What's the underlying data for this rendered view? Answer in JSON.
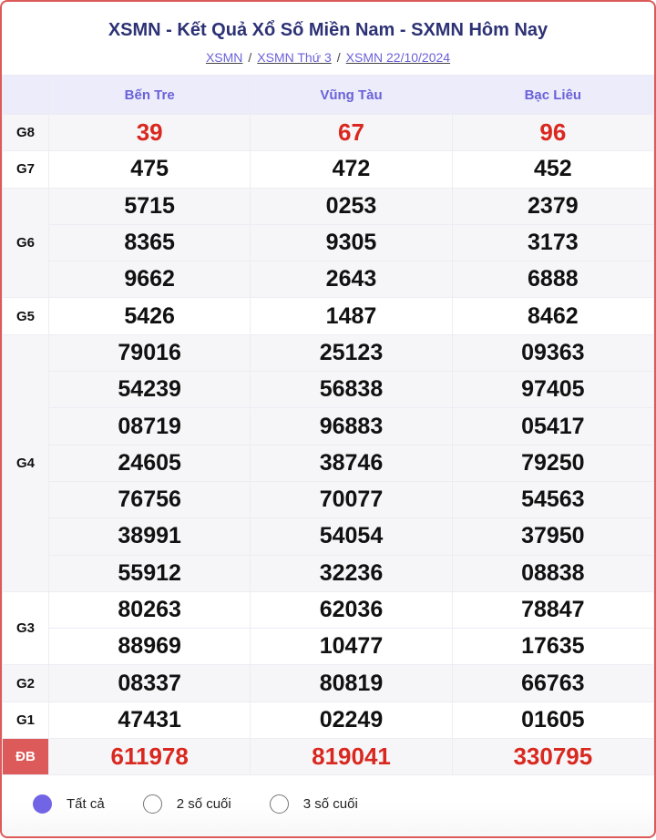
{
  "title": "XSMN - Kết Quả Xổ Số Miền Nam - SXMN Hôm Nay",
  "breadcrumb": [
    "XSMN",
    "XSMN Thứ 3",
    "XSMN 22/10/2024"
  ],
  "provinces": [
    "Bến Tre",
    "Vũng Tàu",
    "Bạc Liêu"
  ],
  "prizes": [
    {
      "label": "G8",
      "highlight": true,
      "results": [
        [
          "39"
        ],
        [
          "67"
        ],
        [
          "96"
        ]
      ]
    },
    {
      "label": "G7",
      "results": [
        [
          "475"
        ],
        [
          "472"
        ],
        [
          "452"
        ]
      ]
    },
    {
      "label": "G6",
      "results": [
        [
          "5715",
          "8365",
          "9662"
        ],
        [
          "0253",
          "9305",
          "2643"
        ],
        [
          "2379",
          "3173",
          "6888"
        ]
      ]
    },
    {
      "label": "G5",
      "results": [
        [
          "5426"
        ],
        [
          "1487"
        ],
        [
          "8462"
        ]
      ]
    },
    {
      "label": "G4",
      "results": [
        [
          "79016",
          "54239",
          "08719",
          "24605",
          "76756",
          "38991",
          "55912"
        ],
        [
          "25123",
          "56838",
          "96883",
          "38746",
          "70077",
          "54054",
          "32236"
        ],
        [
          "09363",
          "97405",
          "05417",
          "79250",
          "54563",
          "37950",
          "08838"
        ]
      ]
    },
    {
      "label": "G3",
      "results": [
        [
          "80263",
          "88969"
        ],
        [
          "62036",
          "10477"
        ],
        [
          "78847",
          "17635"
        ]
      ]
    },
    {
      "label": "G2",
      "results": [
        [
          "08337"
        ],
        [
          "80819"
        ],
        [
          "66763"
        ]
      ]
    },
    {
      "label": "G1",
      "results": [
        [
          "47431"
        ],
        [
          "02249"
        ],
        [
          "01605"
        ]
      ]
    },
    {
      "label": "ĐB",
      "highlight": true,
      "special": true,
      "results": [
        [
          "611978"
        ],
        [
          "819041"
        ],
        [
          "330795"
        ]
      ]
    }
  ],
  "filters": [
    {
      "label": "Tất cả",
      "selected": true
    },
    {
      "label": "2 số cuối",
      "selected": false
    },
    {
      "label": "3 số cuối",
      "selected": false
    }
  ],
  "colors": {
    "accent": "#6a62d8",
    "prize_red": "#d9281f",
    "border": "#dd5a5a",
    "title": "#2d3275"
  }
}
